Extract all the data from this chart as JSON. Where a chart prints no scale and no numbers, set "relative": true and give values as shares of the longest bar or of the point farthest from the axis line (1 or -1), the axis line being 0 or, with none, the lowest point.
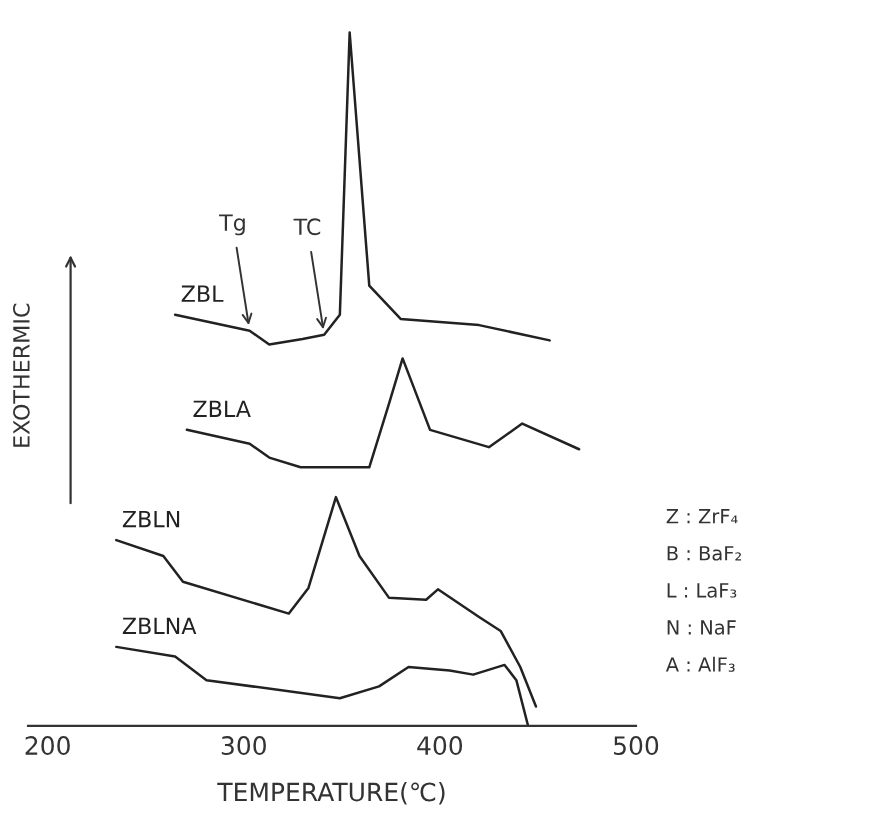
{
  "chart_data": {
    "type": "line",
    "relative": true,
    "xlabel": "TEMPERATURE(℃)",
    "ylabel": "EXOTHERMIC",
    "xlim": [
      190,
      500
    ],
    "xticks": [
      200,
      300,
      400,
      500
    ],
    "grid": false,
    "legend": false,
    "marker": "none",
    "line_style": "solid",
    "series": [
      {
        "name": "ZBL",
        "color": "#222222",
        "x": [
          265,
          303,
          313,
          330,
          341,
          349,
          354,
          364,
          380,
          420,
          456
        ],
        "values": [
          0.593,
          0.57,
          0.55,
          0.558,
          0.564,
          0.593,
          1.0,
          0.635,
          0.587,
          0.578,
          0.556
        ]
      },
      {
        "name": "ZBLA",
        "color": "#222222",
        "x": [
          271,
          303,
          313,
          329,
          364,
          374,
          381,
          395,
          425,
          442,
          471
        ],
        "values": [
          0.427,
          0.407,
          0.387,
          0.373,
          0.373,
          0.464,
          0.53,
          0.427,
          0.402,
          0.436,
          0.399
        ]
      },
      {
        "name": "ZBLN",
        "color": "#222222",
        "x": [
          235,
          259,
          269,
          323,
          333,
          347,
          359,
          374,
          393,
          399,
          420,
          431,
          441,
          449
        ],
        "values": [
          0.268,
          0.245,
          0.208,
          0.162,
          0.199,
          0.33,
          0.245,
          0.185,
          0.182,
          0.197,
          0.157,
          0.137,
          0.085,
          0.028
        ]
      },
      {
        "name": "ZBLNA",
        "color": "#222222",
        "x": [
          235,
          265,
          281,
          349,
          369,
          384,
          405,
          417,
          433,
          439,
          445
        ],
        "values": [
          0.114,
          0.1,
          0.066,
          0.04,
          0.057,
          0.085,
          0.08,
          0.074,
          0.088,
          0.066,
          0.0
        ]
      }
    ],
    "annotations": [
      {
        "text": "TC",
        "x": 341,
        "y": 0.564
      },
      {
        "text": "Tg",
        "x": 303,
        "y": 0.57
      },
      "Z : ZrF₄",
      "B : BaF₂",
      "L : LaF₃",
      "N : NaF",
      "A : AlF₃"
    ]
  }
}
